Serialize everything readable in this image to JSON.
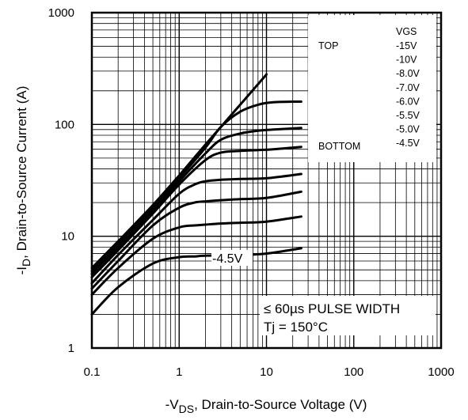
{
  "chart_data": {
    "type": "line",
    "xlabel": {
      "prefix": "-V",
      "sub": "DS",
      "rest": ", Drain-to-Source Voltage (V)"
    },
    "ylabel": {
      "prefix": "-I",
      "sub": "D",
      "rest": ", Drain-to-Source Current (A)"
    },
    "xscale": "log",
    "yscale": "log",
    "xlim": [
      0.1,
      1000
    ],
    "ylim": [
      1,
      1000
    ],
    "x_ticks": [
      "0.1",
      "1",
      "10",
      "100",
      "1000"
    ],
    "y_ticks": [
      "1",
      "10",
      "100",
      "1000"
    ],
    "grid": true,
    "legend": {
      "placement": "top-right",
      "header": "VGS",
      "top_label": "TOP",
      "bottom_label": "BOTTOM",
      "entries": [
        "-15V",
        "-10V",
        "-8.0V",
        "-7.0V",
        "-6.0V",
        "-5.5V",
        "-5.0V",
        "-4.5V"
      ]
    },
    "annotations": {
      "curve_label": "-4.5V",
      "pulse_note": "≤ 60µs PULSE WIDTH",
      "temp_note": "Tj = 150°C"
    },
    "series": [
      {
        "name": "-15V",
        "x": [
          0.1,
          0.2,
          0.5,
          1,
          2,
          5,
          10
        ],
        "y": [
          5.2,
          9,
          19,
          35,
          66,
          150,
          280
        ]
      },
      {
        "name": "-10V",
        "x": [
          0.1,
          0.2,
          0.5,
          1,
          2,
          3,
          5,
          8,
          12,
          25
        ],
        "y": [
          4.9,
          8.5,
          18,
          33,
          62,
          95,
          130,
          150,
          158,
          160
        ]
      },
      {
        "name": "-8.0V",
        "x": [
          0.1,
          0.2,
          0.5,
          1,
          2,
          3,
          5,
          8,
          12,
          25
        ],
        "y": [
          4.6,
          8,
          17,
          31,
          55,
          73,
          83,
          88,
          90,
          93
        ]
      },
      {
        "name": "-7.0V",
        "x": [
          0.1,
          0.2,
          0.5,
          1,
          2,
          3,
          5,
          8,
          12,
          25
        ],
        "y": [
          4.3,
          7.5,
          16,
          29,
          48,
          56,
          58,
          59,
          60,
          63
        ]
      },
      {
        "name": "-6.0V",
        "x": [
          0.1,
          0.2,
          0.5,
          1,
          1.5,
          2,
          3,
          5,
          10,
          25
        ],
        "y": [
          3.8,
          6.8,
          14,
          24,
          29,
          31,
          32,
          32.5,
          33,
          36
        ]
      },
      {
        "name": "-5.5V",
        "x": [
          0.1,
          0.2,
          0.5,
          1,
          1.5,
          2,
          3,
          5,
          10,
          25
        ],
        "y": [
          3.4,
          6,
          12.5,
          18,
          20,
          20.5,
          21,
          21.5,
          22,
          25
        ]
      },
      {
        "name": "-5.0V",
        "x": [
          0.1,
          0.2,
          0.5,
          1,
          1.5,
          2,
          3,
          5,
          10,
          25
        ],
        "y": [
          3.0,
          5.2,
          9.5,
          12,
          12.5,
          12.7,
          13,
          13.2,
          13.5,
          15
        ]
      },
      {
        "name": "-4.5V",
        "x": [
          0.1,
          0.2,
          0.5,
          1,
          1.5,
          2,
          5,
          10,
          25
        ],
        "y": [
          2.0,
          3.5,
          5.7,
          6.5,
          6.6,
          6.7,
          6.8,
          7.0,
          7.8
        ]
      }
    ]
  }
}
